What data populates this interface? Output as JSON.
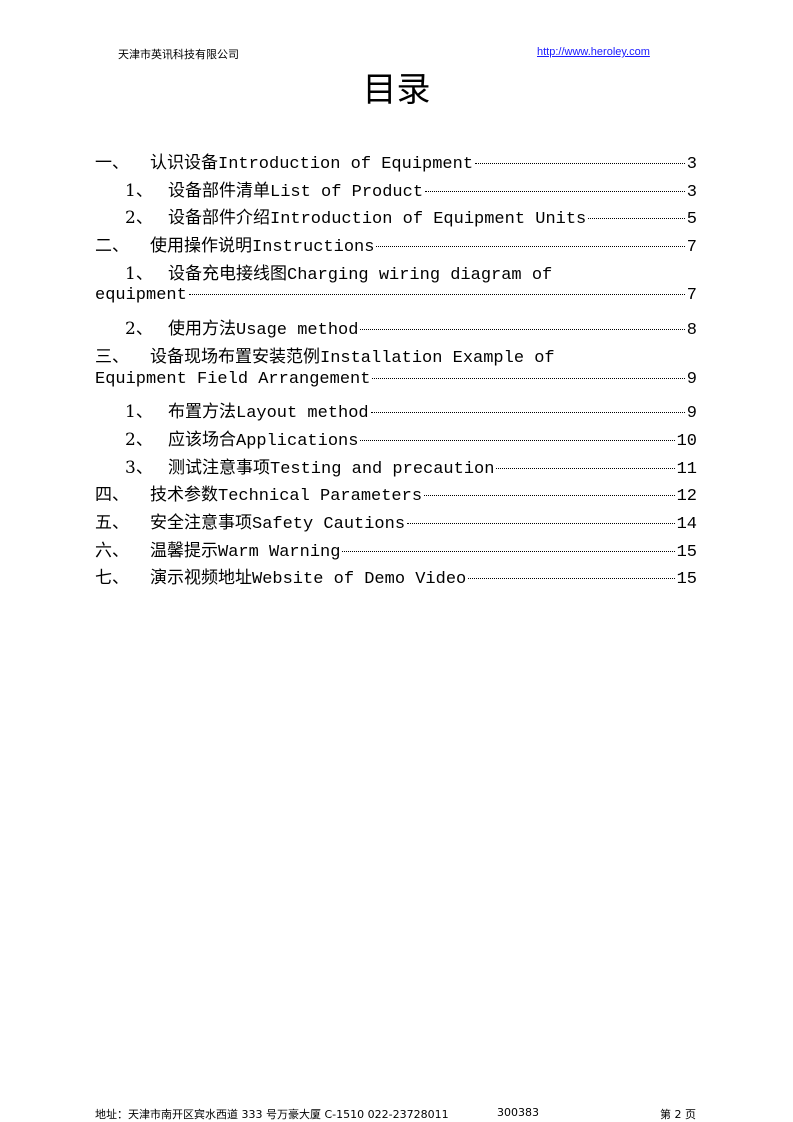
{
  "header": {
    "company": "天津市英讯科技有限公司",
    "url": "http://www.heroley.com"
  },
  "title": "目录",
  "entries": [
    {
      "num": "一、",
      "cn": "认识设备",
      "en": "Introduction of Equipment",
      "page": "3"
    },
    {
      "num": "1、",
      "cn": "设备部件清单",
      "en": "List of Product",
      "page": "3"
    },
    {
      "num": "2、",
      "cn": "设备部件介绍",
      "en": " Introduction of Equipment Units",
      "page": "5"
    },
    {
      "num": "二、",
      "cn": "使用操作说明",
      "en": "Instructions",
      "page": "7"
    },
    {
      "num": "1、",
      "cn": "设备充电接线图",
      "en": " Charging wiring diagram of",
      "cont": "equipment",
      "page": "7"
    },
    {
      "num": "2、",
      "cn": "使用方法",
      "en": "Usage method",
      "page": "8"
    },
    {
      "num": "三、",
      "cn": "设备现场布置安装范例",
      "en": " Installation Example of",
      "cont": "Equipment Field Arrangement",
      "page": "9"
    },
    {
      "num": "1、",
      "cn": "布置方法",
      "en": " Layout method",
      "page": "9"
    },
    {
      "num": "2、",
      "cn": "应该场合",
      "en": " Applications",
      "page": "10"
    },
    {
      "num": "3、",
      "cn": "测试注意事项",
      "en": " Testing and precaution",
      "page": "11"
    },
    {
      "num": "四、",
      "cn": "技术参数",
      "en": "Technical Parameters",
      "page": "12"
    },
    {
      "num": "五、",
      "cn": "安全注意事项",
      "en": "Safety Cautions",
      "page": "14"
    },
    {
      "num": "六、",
      "cn": "温馨提示",
      "en": "Warm Warning",
      "page": "15"
    },
    {
      "num": "七、",
      "cn": "演示视频地址",
      "en": "Website of Demo Video",
      "page": "15"
    }
  ],
  "footer": {
    "address": "地址：天津市南开区宾水西道 333 号万豪大厦 C-1510  022-23728011",
    "postcode": "300383",
    "page": "第 2 页"
  }
}
